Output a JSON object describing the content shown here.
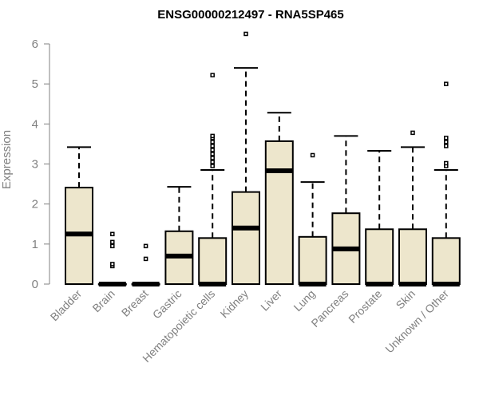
{
  "chart_data": {
    "type": "boxplot",
    "title": "ENSG00000212497 - RNA5SP465",
    "ylabel": "Expression",
    "xlabel": "",
    "ylim": [
      0,
      6
    ],
    "yticks": [
      0,
      1,
      2,
      3,
      4,
      5,
      6
    ],
    "box_fill": "#ede6cc",
    "categories": [
      "Bladder",
      "Brain",
      "Breast",
      "Gastric",
      "Hematopoietic cells",
      "Kidney",
      "Liver",
      "Lung",
      "Pancreas",
      "Prostate",
      "Skin",
      "Unknown / Other"
    ],
    "boxes": [
      {
        "min": 0,
        "q1": 0,
        "median": 1.25,
        "q3": 2.41,
        "max": 3.42,
        "outliers": []
      },
      {
        "min": 0,
        "q1": 0,
        "median": 0,
        "q3": 0,
        "max": 0,
        "outliers": [
          0.45,
          0.5,
          0.95,
          1.05,
          1.25
        ]
      },
      {
        "min": 0,
        "q1": 0,
        "median": 0,
        "q3": 0,
        "max": 0,
        "outliers": [
          0.63,
          0.95
        ]
      },
      {
        "min": 0,
        "q1": 0,
        "median": 0.7,
        "q3": 1.32,
        "max": 2.43,
        "outliers": []
      },
      {
        "min": 0,
        "q1": 0,
        "median": 0,
        "q3": 1.15,
        "max": 2.85,
        "outliers": [
          2.95,
          3.05,
          3.15,
          3.25,
          3.35,
          3.45,
          3.55,
          3.65,
          3.7,
          5.22
        ]
      },
      {
        "min": 0,
        "q1": 0,
        "median": 1.4,
        "q3": 2.3,
        "max": 5.4,
        "outliers": [
          6.25
        ]
      },
      {
        "min": 0,
        "q1": 0,
        "median": 2.83,
        "q3": 3.57,
        "max": 4.28,
        "outliers": []
      },
      {
        "min": 0,
        "q1": 0,
        "median": 0,
        "q3": 1.18,
        "max": 2.55,
        "outliers": [
          3.22
        ]
      },
      {
        "min": 0,
        "q1": 0,
        "median": 0.88,
        "q3": 1.77,
        "max": 3.7,
        "outliers": []
      },
      {
        "min": 0,
        "q1": 0,
        "median": 0,
        "q3": 1.37,
        "max": 3.33,
        "outliers": []
      },
      {
        "min": 0,
        "q1": 0,
        "median": 0,
        "q3": 1.37,
        "max": 3.42,
        "outliers": [
          3.78
        ]
      },
      {
        "min": 0,
        "q1": 0,
        "median": 0,
        "q3": 1.15,
        "max": 2.85,
        "outliers": [
          2.95,
          3.02,
          3.45,
          3.55,
          3.65,
          5.0
        ]
      }
    ]
  }
}
